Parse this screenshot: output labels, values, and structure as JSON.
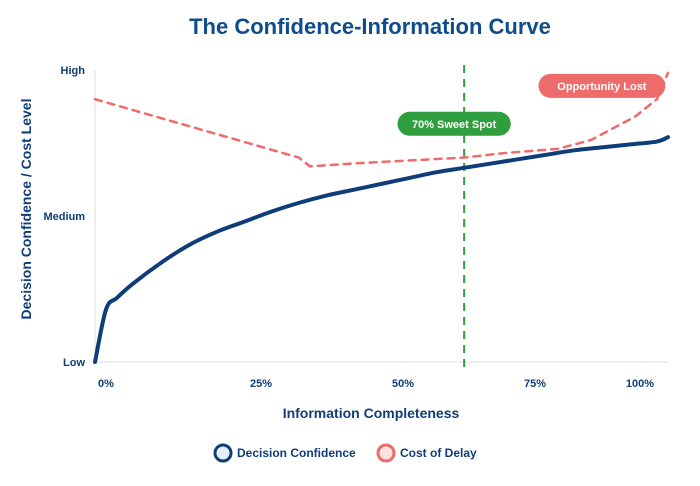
{
  "chart_data": {
    "type": "line",
    "title": "The Confidence-Information Curve",
    "xlabel": "Information Completeness",
    "ylabel": "Decision Confidence / Cost Level",
    "xlim": [
      -2,
      102
    ],
    "ylim": [
      0,
      100
    ],
    "x_ticks": [
      {
        "value": 0,
        "label": "0%"
      },
      {
        "value": 25,
        "label": "25%"
      },
      {
        "value": 50,
        "label": "50%"
      },
      {
        "value": 75,
        "label": "75%"
      },
      {
        "value": 100,
        "label": "100%"
      }
    ],
    "y_ticks": [
      {
        "value": 0,
        "label": "Low"
      },
      {
        "value": 50,
        "label": "Medium"
      },
      {
        "value": 100,
        "label": "High"
      }
    ],
    "grid": false,
    "legend_position": "bottom-center",
    "series": [
      {
        "name": "Decision Confidence",
        "style": "solid",
        "color": "#0f3d78",
        "x": [
          -2,
          0,
          2,
          5,
          10,
          15,
          20,
          25,
          30,
          35,
          40,
          45,
          50,
          55,
          60,
          65,
          70,
          75,
          80,
          85,
          90,
          95,
          100,
          102
        ],
        "y": [
          0,
          18,
          22,
          27,
          34,
          40,
          44.5,
          48,
          51.5,
          54.5,
          57,
          59,
          61,
          63,
          65,
          66.5,
          68,
          69.5,
          71,
          72.5,
          73.5,
          74.5,
          75.5,
          77
        ]
      },
      {
        "name": "Cost of Delay",
        "style": "dashed",
        "color": "#ee6b6b",
        "x": [
          -2,
          35,
          37,
          45,
          55,
          65,
          72,
          82,
          88,
          92,
          96,
          100,
          102
        ],
        "y": [
          90,
          70,
          67,
          68,
          69,
          70,
          71.5,
          73,
          76,
          80,
          84,
          90,
          99
        ]
      }
    ],
    "annotations": [
      {
        "type": "vline",
        "x": 65,
        "color": "#2e9e3e",
        "style": "dashed"
      },
      {
        "type": "badge",
        "text": "70% Sweet Spot",
        "x": 65,
        "y": 85,
        "color": "#2e9e3e"
      },
      {
        "type": "badge",
        "text": "Opportunity Lost",
        "x": 90,
        "y": 98,
        "color": "#ee6b6b"
      }
    ]
  },
  "colors": {
    "title": "#0f4c8a",
    "axis_text": "#0f3d78",
    "axis_line": "#d9dde3"
  }
}
